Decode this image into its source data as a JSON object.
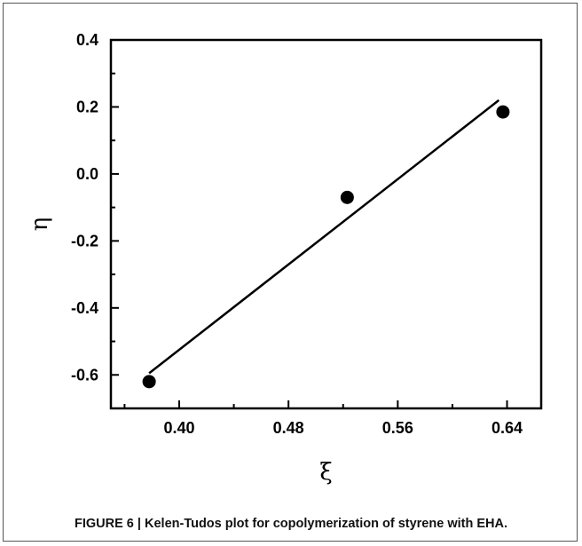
{
  "caption": {
    "label": "FIGURE 6 |",
    "text": "Kelen-Tudos plot for copolymerization of styrene with EHA."
  },
  "chart_data": {
    "type": "scatter",
    "title": "",
    "xlabel": "ξ",
    "ylabel": "η",
    "xlim": [
      0.35,
      0.665
    ],
    "ylim": [
      -0.7,
      0.4
    ],
    "x_major_ticks": [
      0.4,
      0.48,
      0.56,
      0.64
    ],
    "x_tick_labels": [
      "0.40",
      "0.48",
      "0.56",
      "0.64"
    ],
    "x_minor_ticks": [
      0.36,
      0.44,
      0.52,
      0.6
    ],
    "y_major_ticks": [
      -0.6,
      -0.4,
      -0.2,
      0.0,
      0.2,
      0.4
    ],
    "y_tick_labels": [
      "-0.6",
      "-0.4",
      "-0.2",
      "0.0",
      "0.2",
      "0.4"
    ],
    "y_minor_ticks": [
      -0.7,
      -0.5,
      -0.3,
      -0.1,
      0.1,
      0.3
    ],
    "grid": false,
    "series": [
      {
        "type": "scatter",
        "points": [
          {
            "x": 0.378,
            "y": -0.62
          },
          {
            "x": 0.523,
            "y": -0.07
          },
          {
            "x": 0.637,
            "y": 0.185
          }
        ]
      },
      {
        "type": "line",
        "points": [
          {
            "x": 0.378,
            "y": -0.595
          },
          {
            "x": 0.634,
            "y": 0.22
          }
        ]
      }
    ]
  }
}
